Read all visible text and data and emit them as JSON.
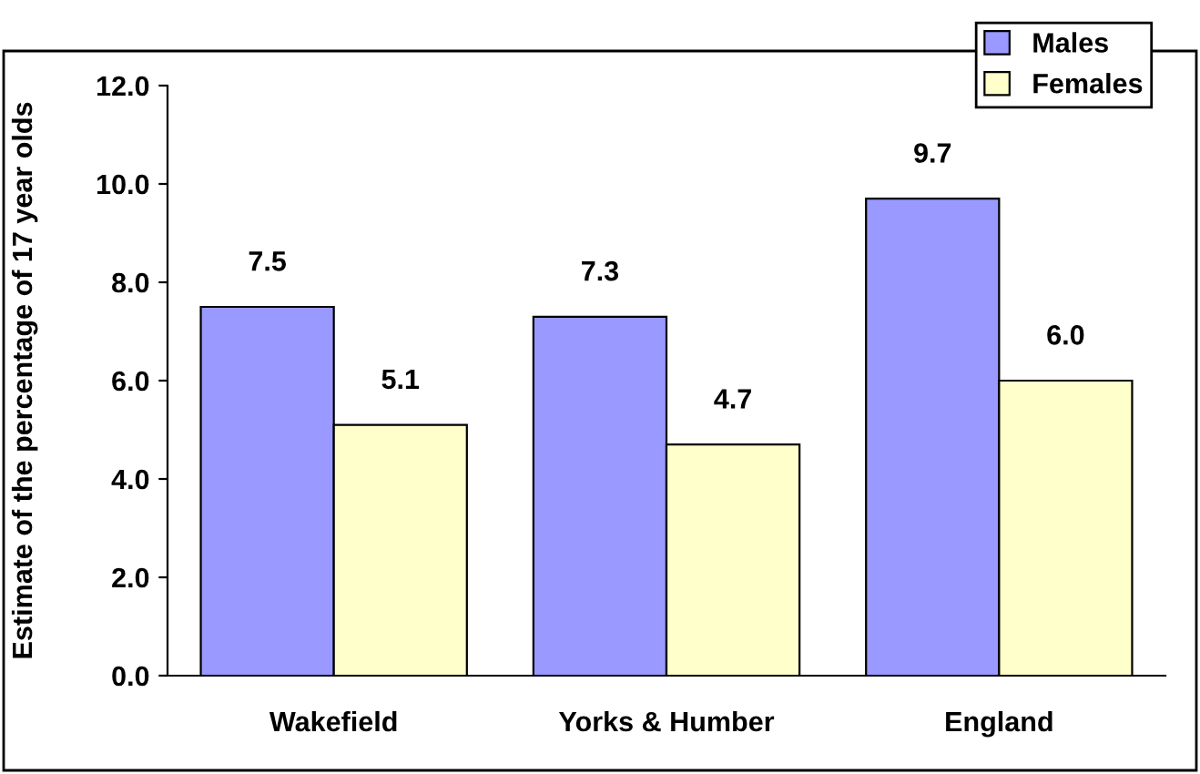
{
  "chart_data": {
    "type": "bar",
    "ylabel": "Estimate of the percentage of 17 year olds",
    "categories": [
      "Wakefield",
      "Yorks & Humber",
      "England"
    ],
    "series": [
      {
        "name": "Males",
        "color": "#9999ff",
        "values": [
          7.5,
          7.3,
          9.7
        ],
        "value_labels": [
          "7.5",
          "7.3",
          "9.7"
        ]
      },
      {
        "name": "Females",
        "color": "#ffffcc",
        "values": [
          5.1,
          4.7,
          6.0
        ],
        "value_labels": [
          "5.1",
          "4.7",
          "6.0"
        ]
      }
    ],
    "ylim": [
      0,
      12
    ],
    "yticks": [
      {
        "value": 0,
        "label": "0.0"
      },
      {
        "value": 2,
        "label": "2.0"
      },
      {
        "value": 4,
        "label": "4.0"
      },
      {
        "value": 6,
        "label": "6.0"
      },
      {
        "value": 8,
        "label": "8.0"
      },
      {
        "value": 10,
        "label": "10.0"
      },
      {
        "value": 12,
        "label": "12.0"
      }
    ],
    "legend": "top right",
    "grid": false
  }
}
